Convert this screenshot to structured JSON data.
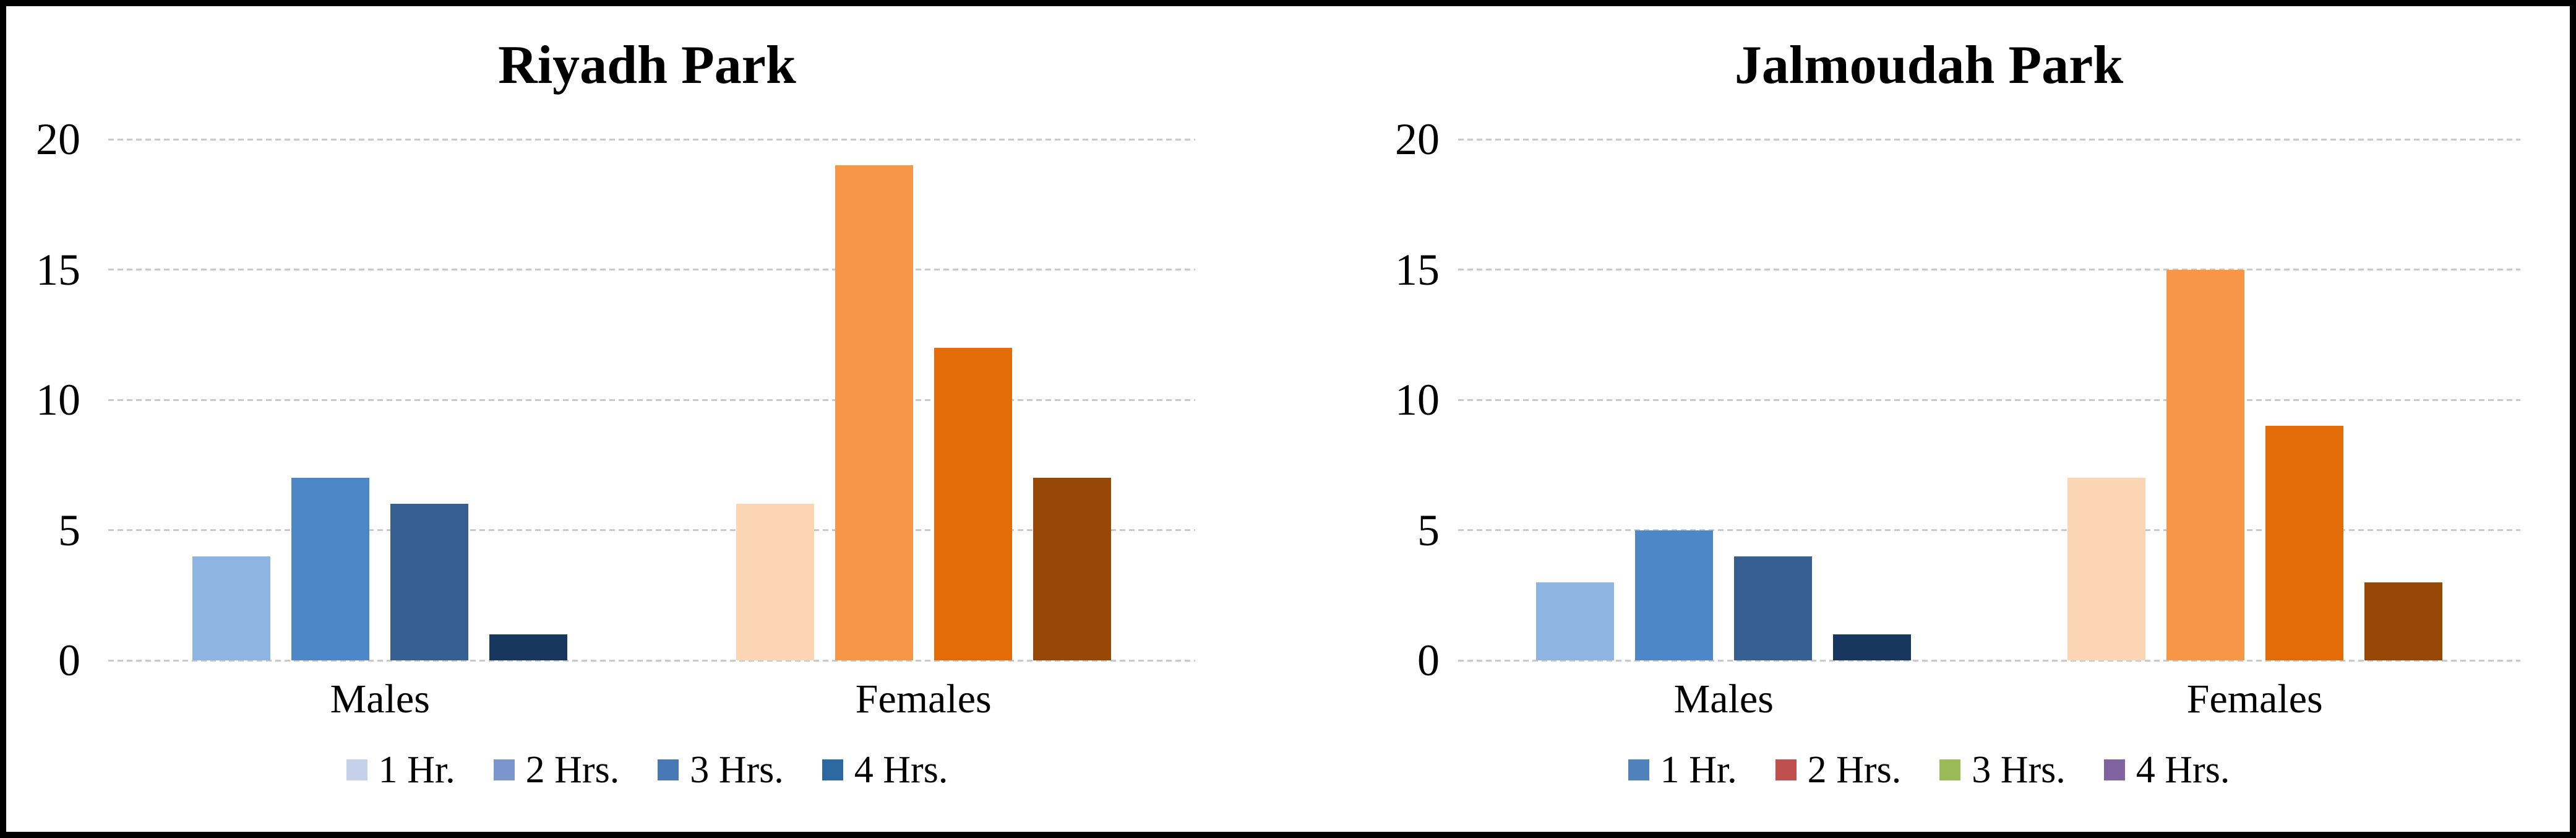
{
  "figure": {
    "frame_color": "#010101",
    "background": "#ffffff",
    "gridline_color": "#c9c9c9",
    "text_color": "#000000"
  },
  "chart_data": [
    {
      "type": "bar",
      "title": "Riyadh Park",
      "xlabel": "",
      "ylabel": "",
      "categories": [
        "Males",
        "Females"
      ],
      "y_ticks": [
        0,
        5,
        10,
        15,
        20
      ],
      "ylim": [
        0,
        20
      ],
      "grid": true,
      "legend_position": "bottom",
      "series": [
        {
          "name": "1 Hr.",
          "values": [
            4,
            6
          ],
          "bar_colors": [
            "#8DB4E2",
            "#FCD5B4"
          ],
          "legend_color": "#C5D1EA"
        },
        {
          "name": "2 Hrs.",
          "values": [
            7,
            19
          ],
          "bar_colors": [
            "#4E87C8",
            "#F79646"
          ],
          "legend_color": "#7B96CC"
        },
        {
          "name": "3 Hrs.",
          "values": [
            6,
            12
          ],
          "bar_colors": [
            "#366092",
            "#E36C09"
          ],
          "legend_color": "#4878B6"
        },
        {
          "name": "4 Hrs.",
          "values": [
            1,
            7
          ],
          "bar_colors": [
            "#17375E",
            "#974706"
          ],
          "legend_color": "#2E68A0"
        }
      ]
    },
    {
      "type": "bar",
      "title": "Jalmoudah Park",
      "xlabel": "",
      "ylabel": "",
      "categories": [
        "Males",
        "Females"
      ],
      "y_ticks": [
        0,
        5,
        10,
        15,
        20
      ],
      "ylim": [
        0,
        20
      ],
      "grid": true,
      "legend_position": "bottom",
      "series": [
        {
          "name": "1 Hr.",
          "values": [
            3,
            7
          ],
          "bar_colors": [
            "#8DB4E2",
            "#FCD5B4"
          ],
          "legend_color": "#4F81BD"
        },
        {
          "name": "2 Hrs.",
          "values": [
            5,
            15
          ],
          "bar_colors": [
            "#4E87C8",
            "#F79646"
          ],
          "legend_color": "#C0504D"
        },
        {
          "name": "3 Hrs.",
          "values": [
            4,
            9
          ],
          "bar_colors": [
            "#366092",
            "#E36C09"
          ],
          "legend_color": "#9BBB59"
        },
        {
          "name": "4 Hrs.",
          "values": [
            1,
            3
          ],
          "bar_colors": [
            "#17375E",
            "#974706"
          ],
          "legend_color": "#8064A2"
        }
      ]
    }
  ]
}
